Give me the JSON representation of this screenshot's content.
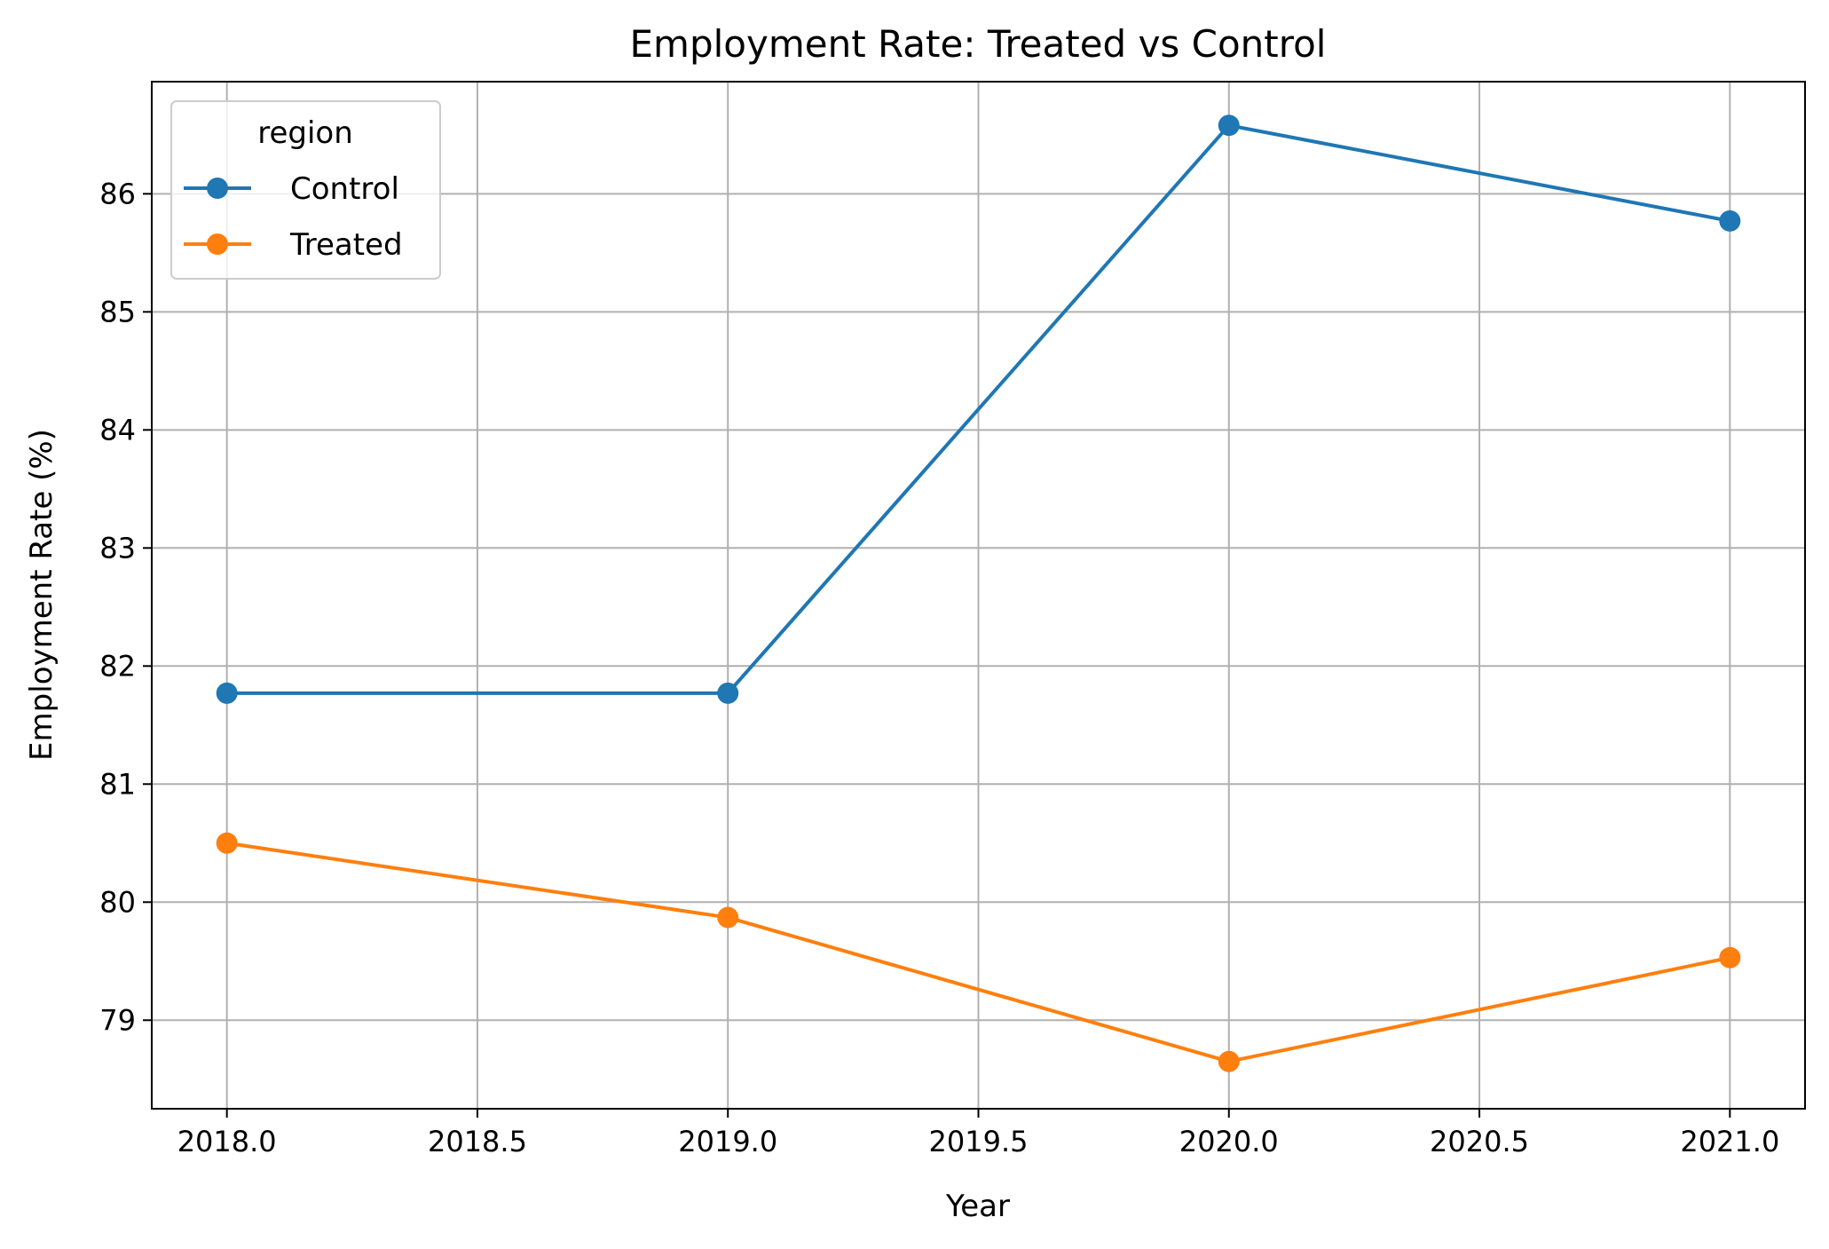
{
  "chart_data": {
    "type": "line",
    "title": "Employment Rate: Treated vs Control",
    "xlabel": "Year",
    "ylabel": "Employment Rate (%)",
    "x": [
      2018,
      2019,
      2020,
      2021
    ],
    "xlim": [
      2017.85,
      2021.15
    ],
    "ylim": [
      78.25,
      86.95
    ],
    "x_ticks": [
      "2018.0",
      "2018.5",
      "2019.0",
      "2019.5",
      "2020.0",
      "2020.5",
      "2021.0"
    ],
    "y_ticks": [
      "79",
      "80",
      "81",
      "82",
      "83",
      "84",
      "85",
      "86"
    ],
    "grid": true,
    "legend": {
      "title": "region",
      "placement": "upper-left"
    },
    "series": [
      {
        "name": "Control",
        "color": "#1f77b4",
        "values": [
          81.77,
          81.77,
          86.58,
          85.77
        ]
      },
      {
        "name": "Treated",
        "color": "#ff7f0e",
        "values": [
          80.5,
          79.87,
          78.65,
          79.53
        ]
      }
    ]
  }
}
